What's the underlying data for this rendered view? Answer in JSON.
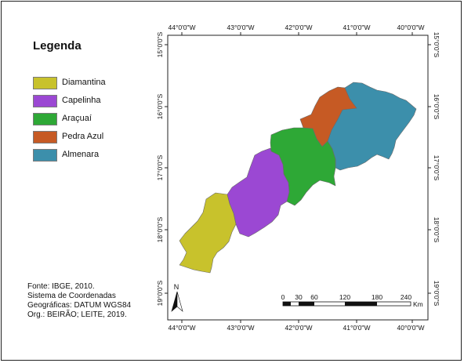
{
  "legend": {
    "title": "Legenda",
    "items": [
      {
        "label": "Diamantina",
        "color": "#c8c22c"
      },
      {
        "label": "Capelinha",
        "color": "#9b48d3"
      },
      {
        "label": "Araçuaí",
        "color": "#2ea836"
      },
      {
        "label": "Pedra Azul",
        "color": "#c65a24"
      },
      {
        "label": "Almenara",
        "color": "#3c8fab"
      }
    ]
  },
  "source": {
    "line1": "Fonte: IBGE, 2010.",
    "line2": "Sistema de Coordenadas",
    "line3": "Geográficas: DATUM WGS84",
    "line4": "Org.: BEIRÃO; LEITE, 2019."
  },
  "grid": {
    "longitudes": [
      "44°0'0\"W",
      "43°0'0\"W",
      "42°0'0\"W",
      "41°0'0\"W",
      "40°0'0\"W"
    ],
    "latitudes": [
      "15°0'0\"S",
      "16°0'0\"S",
      "17°0'0\"S",
      "18°0'0\"S",
      "19°0'0\"S"
    ]
  },
  "north_arrow": {
    "label": "N"
  },
  "scale_bar": {
    "ticks": [
      "0",
      "30",
      "60",
      "120",
      "180",
      "240"
    ],
    "unit": "Km"
  }
}
